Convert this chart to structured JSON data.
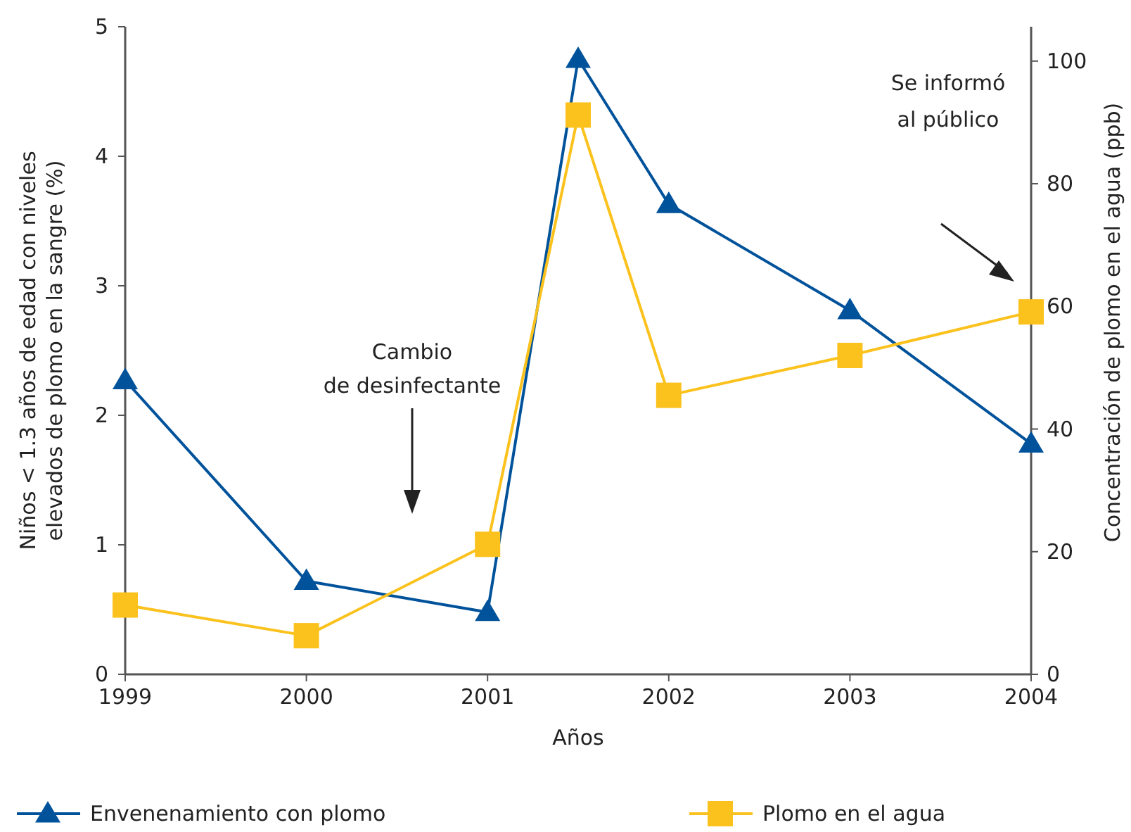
{
  "chart_data": {
    "type": "line",
    "xlabel": "Años",
    "ylabel": "Niños < 1.3 años de edad con niveles\nelevados de plomo en la sangre (%)",
    "y2label": "Concentración de plomo en el agua (ppb)",
    "x": [
      1999,
      2000,
      2001,
      2001.5,
      2002,
      2003,
      2004
    ],
    "xlim": [
      1999,
      2004
    ],
    "xticks": [
      1999,
      2000,
      2001,
      2002,
      2003,
      2004
    ],
    "ylim": [
      0,
      5
    ],
    "yticks": [
      0,
      1,
      2,
      3,
      4,
      5
    ],
    "y2lim": [
      0,
      105.6
    ],
    "y2ticks": [
      0,
      20,
      40,
      60,
      80,
      100
    ],
    "series": [
      {
        "name": "Envenenamiento con plomo",
        "color": "#00529b",
        "marker": "triangle",
        "values": [
          2.27,
          0.72,
          0.48,
          4.75,
          3.63,
          2.81,
          1.78
        ]
      },
      {
        "name": "Plomo en el agua",
        "color": "#fbc21d",
        "marker": "square",
        "axis": "y2",
        "values": [
          11.3,
          6.3,
          21.2,
          91.2,
          45.5,
          52.0,
          59.1
        ]
      }
    ],
    "annotations": [
      "Cambio\nde desinfectante",
      "Se informó\nal público"
    ],
    "grid": false,
    "legend": "bottom"
  }
}
